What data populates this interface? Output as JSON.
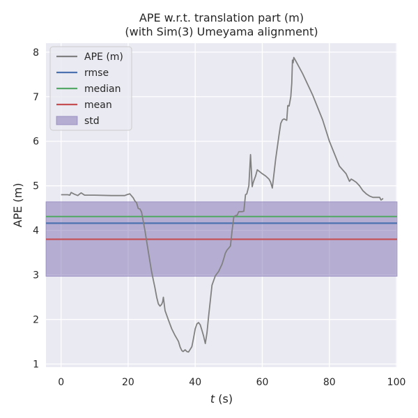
{
  "chart_data": {
    "type": "line",
    "title": "APE w.r.t. translation part (m)\n(with Sim(3) Umeyama alignment)",
    "xlabel_var": "t",
    "xlabel_unit": " (s)",
    "ylabel": "APE (m)",
    "xlim": [
      -4.5,
      100.2
    ],
    "ylim": [
      0.93,
      8.2
    ],
    "xticks": [
      0,
      20,
      40,
      60,
      80,
      100
    ],
    "yticks": [
      1,
      2,
      3,
      4,
      5,
      6,
      7,
      8
    ],
    "grid": true,
    "legend_position": "top-left",
    "colors": {
      "background": "#eaeaf2",
      "grid": "#ffffff",
      "ape": "#808080",
      "rmse": "#4c72b0",
      "median": "#55a868",
      "mean": "#c44e52",
      "std": "#8172b2"
    },
    "legend": [
      {
        "label": "APE (m)",
        "key": "ape",
        "kind": "line"
      },
      {
        "label": "rmse",
        "key": "rmse",
        "kind": "line"
      },
      {
        "label": "median",
        "key": "median",
        "kind": "line"
      },
      {
        "label": "mean",
        "key": "mean",
        "kind": "line"
      },
      {
        "label": "std",
        "key": "std",
        "kind": "band"
      }
    ],
    "stats": {
      "rmse": 4.16,
      "median": 4.31,
      "mean": 3.8,
      "std_band": [
        2.97,
        4.64
      ]
    },
    "series": [
      {
        "name": "APE (m)",
        "x": [
          0,
          1,
          2,
          2.6,
          3,
          4,
          5,
          5.6,
          6,
          7,
          10,
          15,
          18,
          19,
          19.6,
          20.5,
          21.5,
          22,
          22.5,
          23,
          23.5,
          24,
          25,
          26,
          27,
          28,
          28.5,
          29,
          29.5,
          30,
          30.3,
          30.5,
          31,
          32,
          33,
          34,
          35,
          35.5,
          36,
          36.4,
          37,
          37.5,
          38,
          39,
          39.5,
          40,
          40.5,
          41,
          41.5,
          42,
          42.5,
          43,
          43.5,
          44,
          45,
          46,
          47,
          48,
          48.5,
          49,
          49.5,
          50,
          50.5,
          51,
          51.5,
          52,
          52.5,
          53,
          53.5,
          54,
          54.5,
          55,
          55.4,
          56,
          56.5,
          57,
          57.2,
          57.5,
          58,
          58.5,
          60,
          61,
          62,
          62.5,
          63,
          64,
          65,
          65.5,
          66,
          66.5,
          67,
          67.3,
          67.6,
          68,
          68.5,
          68.8,
          69,
          69.2,
          69.4,
          70,
          72,
          75,
          78,
          80,
          83,
          85,
          86,
          86.5,
          87,
          88,
          89,
          90,
          91,
          92,
          93,
          94,
          95,
          95.4,
          95.8,
          96
        ],
        "values": [
          4.8,
          4.8,
          4.8,
          4.79,
          4.85,
          4.81,
          4.78,
          4.82,
          4.84,
          4.79,
          4.79,
          4.78,
          4.78,
          4.78,
          4.8,
          4.82,
          4.73,
          4.66,
          4.62,
          4.49,
          4.48,
          4.41,
          4.0,
          3.53,
          3.07,
          2.71,
          2.5,
          2.35,
          2.3,
          2.34,
          2.4,
          2.5,
          2.2,
          1.99,
          1.79,
          1.64,
          1.51,
          1.38,
          1.3,
          1.28,
          1.32,
          1.28,
          1.27,
          1.39,
          1.58,
          1.79,
          1.9,
          1.93,
          1.88,
          1.76,
          1.63,
          1.46,
          1.7,
          2.08,
          2.77,
          2.98,
          3.08,
          3.24,
          3.36,
          3.49,
          3.56,
          3.6,
          3.65,
          4.0,
          4.3,
          4.33,
          4.34,
          4.42,
          4.42,
          4.42,
          4.43,
          4.8,
          4.82,
          5.0,
          5.7,
          4.98,
          5.05,
          5.12,
          5.22,
          5.36,
          5.27,
          5.22,
          5.15,
          5.08,
          4.95,
          5.6,
          6.15,
          6.4,
          6.48,
          6.5,
          6.48,
          6.47,
          6.8,
          6.79,
          7.0,
          7.3,
          7.82,
          7.76,
          7.88,
          7.8,
          7.52,
          7.04,
          6.48,
          6.0,
          5.44,
          5.27,
          5.1,
          5.15,
          5.13,
          5.08,
          5.0,
          4.89,
          4.82,
          4.77,
          4.74,
          4.74,
          4.74,
          4.68,
          4.7,
          4.72
        ]
      }
    ]
  }
}
